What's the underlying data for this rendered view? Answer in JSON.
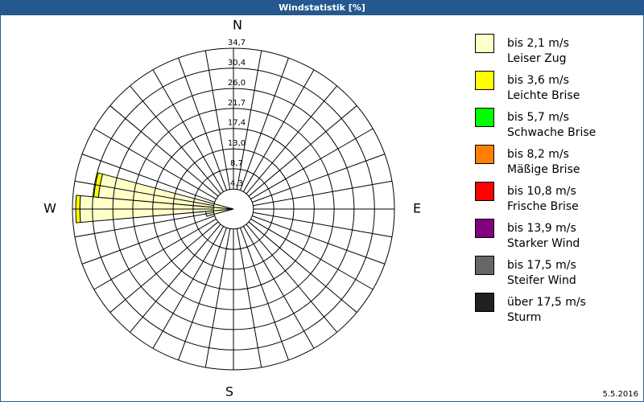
{
  "chart_data": {
    "type": "windrose",
    "title": "Windstatistik [%]",
    "date": "5.5.2016",
    "categories": [
      "N",
      null,
      null,
      null,
      null,
      null,
      null,
      null,
      null,
      "E",
      null,
      null,
      null,
      null,
      null,
      null,
      null,
      null,
      "S",
      null,
      null,
      null,
      null,
      null,
      null,
      null,
      null,
      "W",
      null,
      null,
      null,
      null,
      null,
      null,
      null,
      null
    ],
    "rlim": [
      0,
      34.7
    ],
    "rticks": [
      {
        "value": 4.3,
        "label": "4,3"
      },
      {
        "value": 8.7,
        "label": "8,7"
      },
      {
        "value": 13.0,
        "label": "13,0"
      },
      {
        "value": 17.4,
        "label": "17,4"
      },
      {
        "value": 21.7,
        "label": "21,7"
      },
      {
        "value": 26.0,
        "label": "26,0"
      },
      {
        "value": 30.4,
        "label": "30,4"
      },
      {
        "value": 34.7,
        "label": "34,7"
      }
    ],
    "series": [
      {
        "name": "bis 2,1 m/s",
        "description": "Leiser Zug",
        "color": "#ffffc8",
        "values": [
          0,
          0,
          0,
          0,
          0,
          0,
          0,
          0,
          0,
          0,
          0,
          0,
          0,
          0,
          0,
          0,
          0,
          0,
          0,
          0,
          0,
          0,
          0,
          0,
          0,
          0,
          6,
          33.1,
          29.2,
          0,
          0,
          0,
          0,
          0,
          0,
          0
        ]
      },
      {
        "name": "bis 3,6 m/s",
        "description": "Leichte Brise",
        "color": "#ffff00",
        "values": [
          0,
          0,
          0,
          0,
          0,
          0,
          0,
          0,
          0,
          0,
          0,
          0,
          0,
          0,
          0,
          0,
          0,
          0,
          0,
          0,
          0,
          0,
          0,
          0,
          0,
          0,
          0,
          0.9,
          1.0,
          0,
          0,
          0,
          0,
          0,
          0,
          0
        ]
      },
      {
        "name": "bis 5,7 m/s",
        "description": "Schwache Brise",
        "color": "#00ff00",
        "values": [
          0,
          0,
          0,
          0,
          0,
          0,
          0,
          0,
          0,
          0,
          0,
          0,
          0,
          0,
          0,
          0,
          0,
          0,
          0,
          0,
          0,
          0,
          0,
          0,
          0,
          0,
          0,
          0,
          0,
          0,
          0,
          0,
          0,
          0,
          0,
          0
        ]
      },
      {
        "name": "bis 8,2 m/s",
        "description": "Mäßige Brise",
        "color": "#ff8000",
        "values": [
          0,
          0,
          0,
          0,
          0,
          0,
          0,
          0,
          0,
          0,
          0,
          0,
          0,
          0,
          0,
          0,
          0,
          0,
          0,
          0,
          0,
          0,
          0,
          0,
          0,
          0,
          0,
          0,
          0,
          0,
          0,
          0,
          0,
          0,
          0,
          0
        ]
      },
      {
        "name": "bis 10,8 m/s",
        "description": "Frische Brise",
        "color": "#ff0000",
        "values": [
          0,
          0,
          0,
          0,
          0,
          0,
          0,
          0,
          0,
          0,
          0,
          0,
          0,
          0,
          0,
          0,
          0,
          0,
          0,
          0,
          0,
          0,
          0,
          0,
          0,
          0,
          0,
          0,
          0,
          0,
          0,
          0,
          0,
          0,
          0,
          0
        ]
      },
      {
        "name": "bis 13,9 m/s",
        "description": "Starker Wind",
        "color": "#800080",
        "values": [
          0,
          0,
          0,
          0,
          0,
          0,
          0,
          0,
          0,
          0,
          0,
          0,
          0,
          0,
          0,
          0,
          0,
          0,
          0,
          0,
          0,
          0,
          0,
          0,
          0,
          0,
          0,
          0,
          0,
          0,
          0,
          0,
          0,
          0,
          0,
          0
        ]
      },
      {
        "name": "bis 17,5 m/s",
        "description": "Steifer Wind",
        "color": "#666666",
        "values": [
          0,
          0,
          0,
          0,
          0,
          0,
          0,
          0,
          0,
          0,
          0,
          0,
          0,
          0,
          0,
          0,
          0,
          0,
          0,
          0,
          0,
          0,
          0,
          0,
          0,
          0,
          0,
          0,
          0,
          0,
          0,
          0,
          0,
          0,
          0,
          0
        ]
      },
      {
        "name": "über 17,5 m/s",
        "description": "Sturm",
        "color": "#202020",
        "values": [
          0,
          0,
          0,
          0,
          0,
          0,
          0,
          0,
          0,
          0,
          0,
          0,
          0,
          0,
          0,
          0,
          0,
          0,
          0,
          0,
          0,
          0,
          0,
          0,
          0,
          0,
          0,
          0,
          0,
          0,
          0,
          0,
          0,
          0,
          0,
          0
        ]
      }
    ]
  }
}
